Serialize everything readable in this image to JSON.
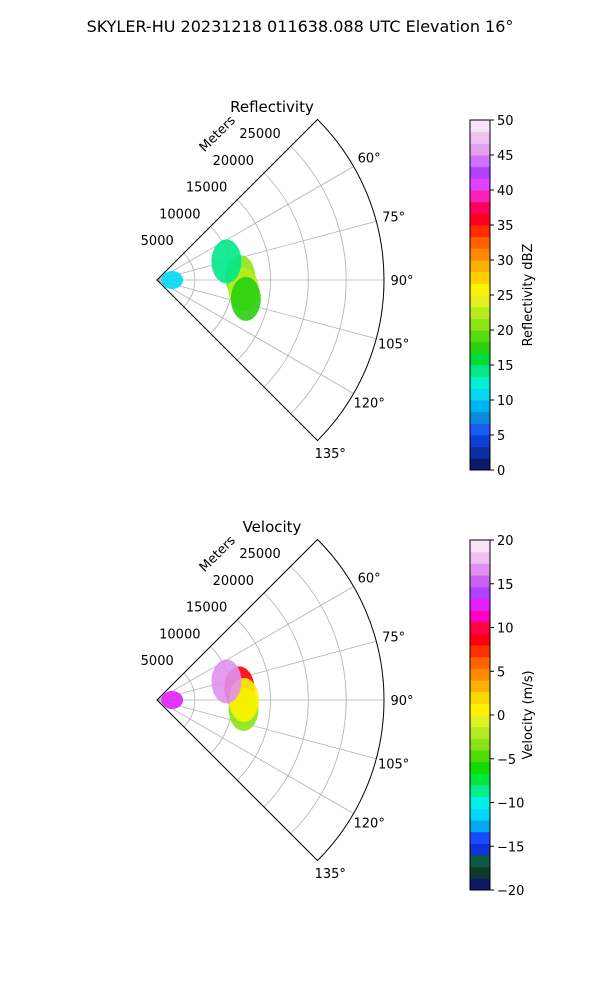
{
  "suptitle": "SKYLER-HU  20231218  011638.088 UTC Elevation 16°",
  "range_unit_label": "Meters",
  "chart_data": [
    {
      "type": "polar-sector",
      "title": "Reflectivity",
      "range_ticks": [
        5000,
        10000,
        15000,
        20000,
        25000
      ],
      "range_max": 30000,
      "azimuth_range_deg": [
        45,
        135
      ],
      "azimuth_tick_labels": [
        "60°",
        "75°",
        "90°",
        "105°",
        "120°",
        "135°"
      ],
      "grid": true,
      "colorbar": {
        "label": "Reflectivity dBZ",
        "min": 0,
        "max": 50,
        "ticks": [
          "0",
          "5",
          "10",
          "15",
          "20",
          "25",
          "30",
          "35",
          "40",
          "45",
          "50"
        ],
        "colors": [
          "#0a1a6a",
          "#0d2ca0",
          "#0f3fd8",
          "#1b5cf0",
          "#0b8ad8",
          "#00b4f0",
          "#00d8f4",
          "#00f0d0",
          "#00e88a",
          "#00dc3c",
          "#28d010",
          "#58dc10",
          "#8ce418",
          "#b8ec1e",
          "#e4f020",
          "#fff200",
          "#ffd000",
          "#ffae00",
          "#ff8a00",
          "#ff6000",
          "#ff2c00",
          "#ff0020",
          "#ff005a",
          "#ff20b4",
          "#e040ff",
          "#b040ff",
          "#d070ff",
          "#e49ff0",
          "#f0c0f0",
          "#f8e4fa"
        ]
      },
      "echoes": [
        {
          "azimuth_deg": 88,
          "range_m": 11000,
          "value_dbz": 20
        },
        {
          "azimuth_deg": 96,
          "range_m": 11500,
          "value_dbz": 22
        },
        {
          "azimuth_deg": 102,
          "range_m": 12000,
          "value_dbz": 18
        },
        {
          "azimuth_deg": 75,
          "range_m": 9500,
          "value_dbz": 14
        },
        {
          "azimuth_deg": 90,
          "range_m": 2000,
          "value_dbz": 10
        }
      ]
    },
    {
      "type": "polar-sector",
      "title": "Velocity",
      "range_ticks": [
        5000,
        10000,
        15000,
        20000,
        25000
      ],
      "range_max": 30000,
      "azimuth_range_deg": [
        45,
        135
      ],
      "azimuth_tick_labels": [
        "60°",
        "75°",
        "90°",
        "105°",
        "120°",
        "135°"
      ],
      "grid": true,
      "colorbar": {
        "label": "Velocity (m/s)",
        "min": -20,
        "max": 20,
        "ticks": [
          "−20",
          "−15",
          "−10",
          "−5",
          "0",
          "5",
          "10",
          "15",
          "20"
        ],
        "colors": [
          "#0a1a6a",
          "#0c3a2c",
          "#0f5a40",
          "#1030d8",
          "#1a4cff",
          "#00a8f0",
          "#00d8f8",
          "#00f0e8",
          "#00f08a",
          "#00e840",
          "#10dc00",
          "#50dc00",
          "#88e418",
          "#b4ec20",
          "#e0f020",
          "#fff200",
          "#ffd800",
          "#ffb000",
          "#ff8a00",
          "#ff6000",
          "#ff3000",
          "#ff0010",
          "#ff0040",
          "#ff00c0",
          "#e020ff",
          "#b040ff",
          "#c860f0",
          "#e090f0",
          "#f0bff0",
          "#f8e4fa"
        ]
      },
      "echoes": [
        {
          "azimuth_deg": 82,
          "range_m": 11000,
          "value_ms": 9
        },
        {
          "azimuth_deg": 96,
          "range_m": 11500,
          "value_ms": -3
        },
        {
          "azimuth_deg": 90,
          "range_m": 11500,
          "value_ms": 1
        },
        {
          "azimuth_deg": 75,
          "range_m": 9500,
          "value_ms": 17
        },
        {
          "azimuth_deg": 90,
          "range_m": 2000,
          "value_ms": 12
        }
      ]
    }
  ]
}
